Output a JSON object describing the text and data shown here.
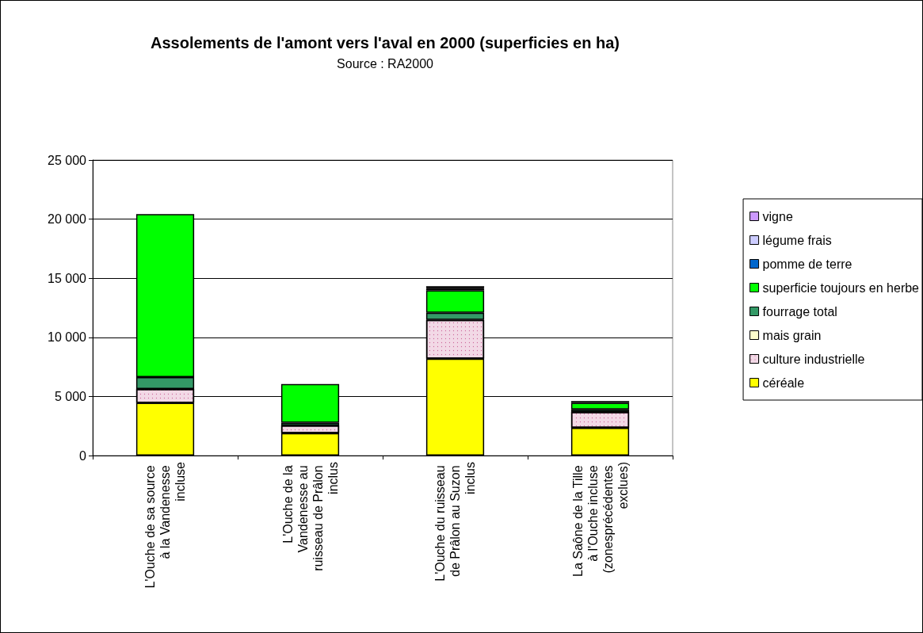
{
  "chart_data": {
    "type": "bar",
    "stacked": true,
    "title": "Assolements de l'amont vers l'aval en 2000 (superficies en ha)",
    "subtitle": "Source : RA2000",
    "categories": [
      "L'Ouche de sa source à la Vandenesse incluse",
      "L'Ouche de la Vandenesse au ruisseau de Prâlon inclus",
      "L'Ouche du ruisseau de Prâlon au Suzon inclus",
      "La Saône de la Tille à l'Ouche incluse (zonesprécédentes exclues)"
    ],
    "series": [
      {
        "name": "céréale",
        "color": "#ffff00",
        "values": [
          4450,
          1900,
          8200,
          2340
        ]
      },
      {
        "name": "culture industrielle",
        "color": "#f2d9e6",
        "values": [
          1180,
          650,
          3280,
          1340
        ]
      },
      {
        "name": "mais grain",
        "color": "#ffffcc",
        "values": [
          0,
          0,
          0,
          0
        ]
      },
      {
        "name": "fourrage total",
        "color": "#339966",
        "values": [
          1000,
          230,
          600,
          220
        ]
      },
      {
        "name": "superficie toujours en herbe",
        "color": "#00ff00",
        "values": [
          13800,
          3270,
          1890,
          560
        ]
      },
      {
        "name": "pomme de terre",
        "color": "#0066cc",
        "values": [
          0,
          0,
          150,
          150
        ]
      },
      {
        "name": "légume frais",
        "color": "#ccccff",
        "values": [
          0,
          0,
          50,
          0
        ]
      },
      {
        "name": "vigne",
        "color": "#cc99ff",
        "values": [
          0,
          0,
          150,
          0
        ]
      }
    ],
    "ylim": [
      0,
      25000
    ],
    "yticks": [
      {
        "value": 0,
        "label": "0"
      },
      {
        "value": 5000,
        "label": "5 000"
      },
      {
        "value": 10000,
        "label": "10 000"
      },
      {
        "value": 15000,
        "label": "15 000"
      },
      {
        "value": 20000,
        "label": "20 000"
      },
      {
        "value": 25000,
        "label": "25 000"
      }
    ],
    "grid": "y",
    "legend": "right"
  }
}
